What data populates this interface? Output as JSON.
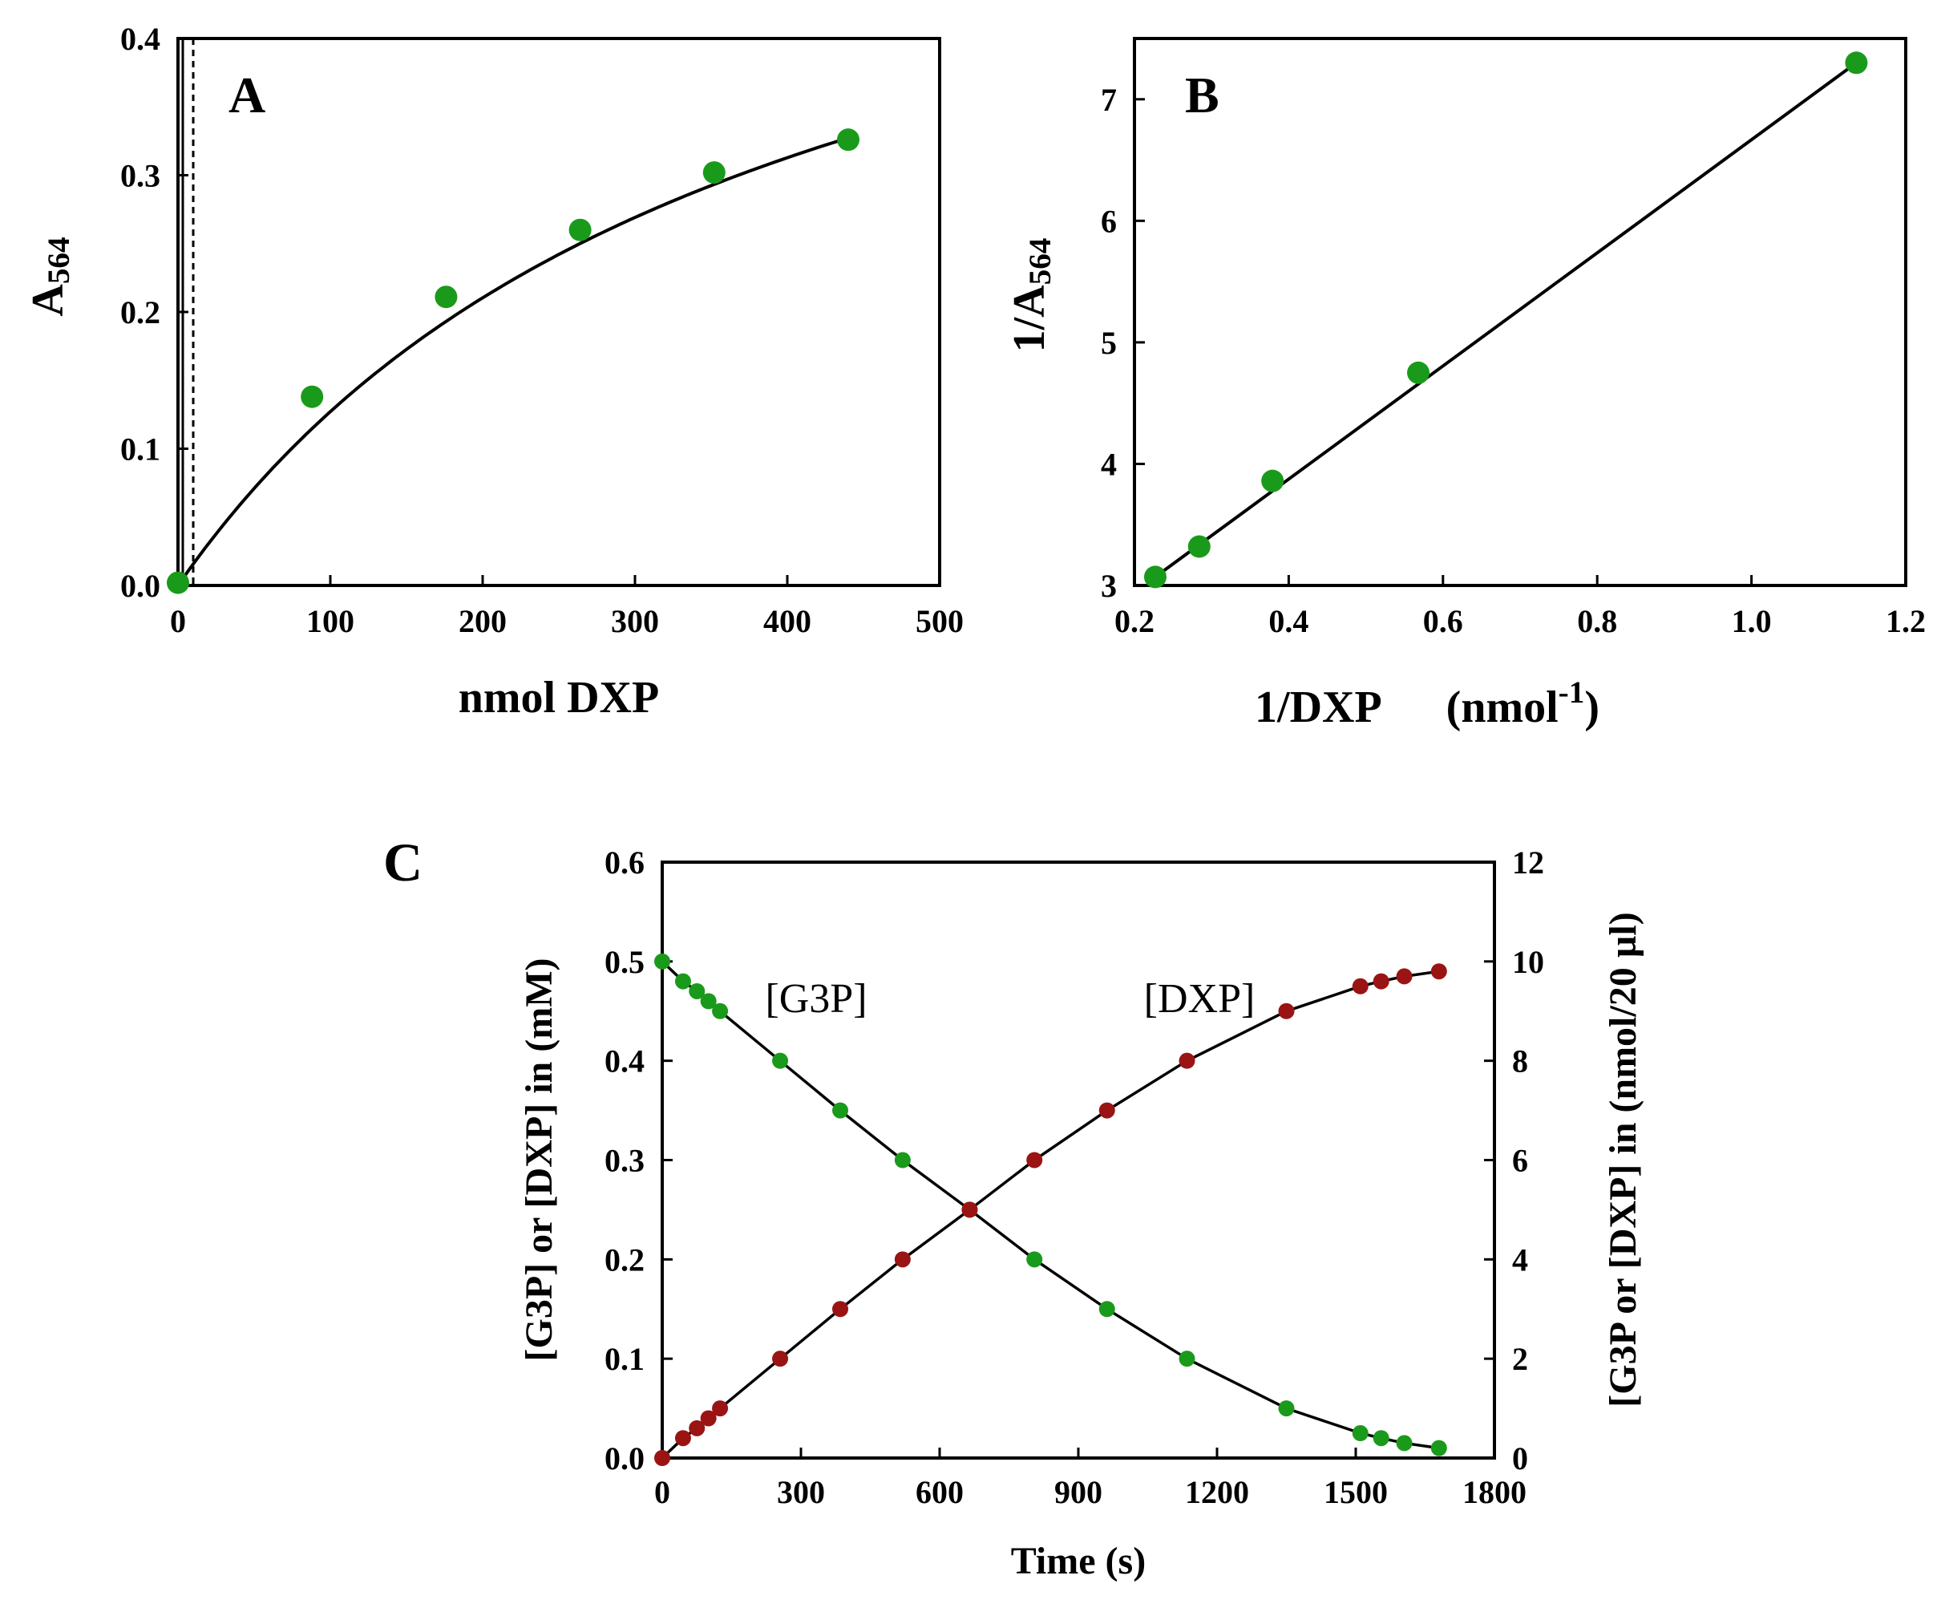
{
  "colors": {
    "green": "#1a9a1a",
    "red": "#9a1414",
    "line": "#000000"
  },
  "chart_data": [
    {
      "id": "A",
      "type": "scatter",
      "title": "A",
      "xlabel": "nmol DXP",
      "ylabel_main": "A",
      "ylabel_sub": "564",
      "xlim": [
        0,
        500
      ],
      "ylim": [
        0,
        0.4
      ],
      "xticks": [
        0,
        100,
        200,
        300,
        400,
        500
      ],
      "yticks": [
        0.0,
        0.1,
        0.2,
        0.3,
        0.4
      ],
      "xtick_labels": [
        "0",
        "100",
        "200",
        "300",
        "400",
        "500"
      ],
      "ytick_labels": [
        "0.0",
        "0.1",
        "0.2",
        "0.3",
        "0.4"
      ],
      "series": [
        {
          "name": "data",
          "x": [
            0,
            88,
            176,
            264,
            352,
            440
          ],
          "y": [
            0.002,
            0.138,
            0.211,
            0.26,
            0.302,
            0.326
          ]
        }
      ],
      "fit": {
        "model": "hyperbolic",
        "vmax": 0.61,
        "km": 380
      },
      "reference_line_x": 10
    },
    {
      "id": "B",
      "type": "scatter",
      "title": "B",
      "xlabel": "1/DXP",
      "xlabel_unit_open": "(nmol",
      "xlabel_unit_sup": "-1",
      "xlabel_unit_close": ")",
      "ylabel_main": "1/A",
      "ylabel_sub": "564",
      "xlim": [
        0.2,
        1.2
      ],
      "ylim": [
        3,
        7.5
      ],
      "xticks": [
        0.2,
        0.4,
        0.6,
        0.8,
        1.0,
        1.2
      ],
      "yticks": [
        3,
        4,
        5,
        6,
        7
      ],
      "xtick_labels": [
        "0.2",
        "0.4",
        "0.6",
        "0.8",
        "1.0",
        "1.2"
      ],
      "ytick_labels": [
        "3",
        "4",
        "5",
        "6",
        "7"
      ],
      "series": [
        {
          "name": "data",
          "x": [
            0.227,
            0.284,
            0.379,
            0.568,
            1.136
          ],
          "y": [
            3.07,
            3.32,
            3.86,
            4.75,
            7.3
          ]
        }
      ],
      "fit_line": {
        "x": [
          0.227,
          1.136
        ],
        "y": [
          3.07,
          7.3
        ]
      }
    },
    {
      "id": "C",
      "type": "line",
      "title": "C",
      "xlabel": "Time (s)",
      "ylabel": "[G3P] or [DXP] in (mM)",
      "y2label": "[G3P or [DXP] in (nmol/20 µl)",
      "xlim": [
        0,
        1800
      ],
      "ylim": [
        0,
        0.6
      ],
      "y2lim": [
        0,
        12
      ],
      "xticks": [
        0,
        300,
        600,
        900,
        1200,
        1500,
        1800
      ],
      "yticks": [
        0.0,
        0.1,
        0.2,
        0.3,
        0.4,
        0.5,
        0.6
      ],
      "y2ticks": [
        0,
        2,
        4,
        6,
        8,
        10,
        12
      ],
      "xtick_labels": [
        "0",
        "300",
        "600",
        "900",
        "1200",
        "1500",
        "1800"
      ],
      "ytick_labels": [
        "0.0",
        "0.1",
        "0.2",
        "0.3",
        "0.4",
        "0.5",
        "0.6"
      ],
      "y2tick_labels": [
        "0",
        "2",
        "4",
        "6",
        "8",
        "10",
        "12"
      ],
      "series": [
        {
          "name": "[G3P]",
          "color": "green",
          "x": [
            0,
            45,
            75,
            100,
            125,
            255,
            385,
            520,
            665,
            805,
            962,
            1135,
            1350,
            1510,
            1555,
            1605,
            1680
          ],
          "y": [
            0.5,
            0.48,
            0.47,
            0.46,
            0.45,
            0.4,
            0.35,
            0.3,
            0.25,
            0.2,
            0.15,
            0.1,
            0.05,
            0.025,
            0.02,
            0.015,
            0.01
          ]
        },
        {
          "name": "[DXP]",
          "color": "red",
          "x": [
            0,
            45,
            75,
            100,
            125,
            255,
            385,
            520,
            665,
            805,
            962,
            1135,
            1350,
            1510,
            1555,
            1605,
            1680
          ],
          "y": [
            0,
            0.02,
            0.03,
            0.04,
            0.05,
            0.1,
            0.15,
            0.2,
            0.25,
            0.3,
            0.35,
            0.4,
            0.45,
            0.475,
            0.48,
            0.485,
            0.49
          ]
        }
      ]
    }
  ]
}
